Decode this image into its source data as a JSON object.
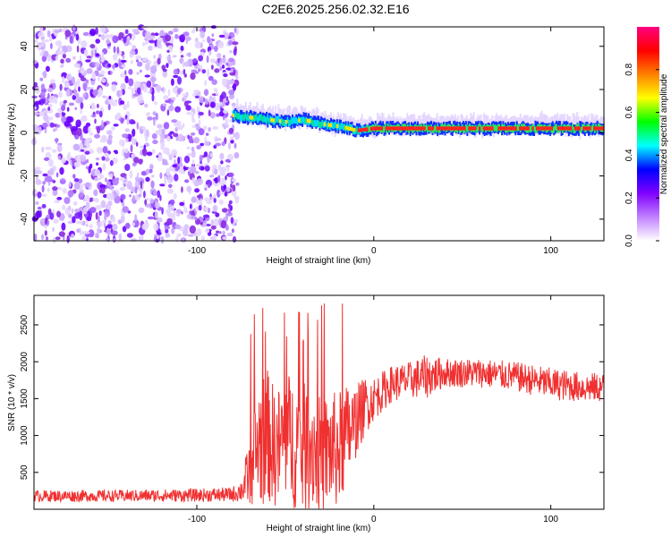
{
  "title": "C2E6.2025.256.02.32.E16",
  "spectrogram": {
    "xlabel": "Height of straight line (km)",
    "ylabel": "Frequency (Hz)",
    "xlim": [
      -192,
      130
    ],
    "ylim": [
      -50,
      49
    ],
    "xticks": [
      -100,
      0,
      100
    ],
    "yticks": [
      -40,
      -20,
      0,
      20,
      40
    ],
    "colorbar": {
      "label": "Normalized spectral amplitude",
      "ticks": [
        "0.0",
        "0.2",
        "0.4",
        "0.6",
        "0.8"
      ],
      "tick_values": [
        0.0,
        0.2,
        0.4,
        0.6,
        0.8
      ],
      "range": [
        0,
        1
      ],
      "colors": [
        "#ffffff",
        "#c080ff",
        "#8000ff",
        "#0000ff",
        "#00ffff",
        "#00ff00",
        "#ffff00",
        "#ff8000",
        "#ff0000",
        "#ff0080"
      ]
    },
    "noise_region_end_km": -77,
    "signal_track": {
      "x": [
        -80,
        -70,
        -60,
        -50,
        -40,
        -30,
        -20,
        -10,
        0,
        10,
        20,
        30,
        40,
        60,
        80,
        100,
        130
      ],
      "freq": [
        8,
        7,
        6,
        5,
        6,
        4,
        3,
        1,
        2,
        2,
        2,
        2,
        2,
        2,
        2,
        2,
        2
      ]
    }
  },
  "chart_data": [
    {
      "type": "heatmap",
      "title": "C2E6.2025.256.02.32.E16",
      "xlabel": "Height of straight line (km)",
      "ylabel": "Frequency (Hz)",
      "xlim": [
        -192,
        130
      ],
      "ylim": [
        -50,
        49
      ],
      "xticks": [
        -100,
        0,
        100
      ],
      "yticks": [
        -40,
        -20,
        0,
        20,
        40
      ],
      "colorbar_label": "Normalized spectral amplitude",
      "colorbar_ticks": [
        "0.0",
        "0.2",
        "0.4",
        "0.6",
        "0.8"
      ]
    },
    {
      "type": "line",
      "xlabel": "Height of straight line (km)",
      "ylabel": "SNR (10 * v/v)",
      "xlim": [
        -192,
        130
      ],
      "ylim": [
        0,
        2900
      ],
      "xticks": [
        -100,
        0,
        100
      ],
      "yticks": [
        500,
        1000,
        1500,
        2000,
        2500
      ],
      "color": "#f03030",
      "envelope": {
        "x": [
          -192,
          -150,
          -100,
          -80,
          -75,
          -70,
          -65,
          -60,
          -55,
          -50,
          -45,
          -40,
          -35,
          -30,
          -25,
          -20,
          -15,
          -10,
          -5,
          0,
          10,
          20,
          30,
          40,
          60,
          80,
          100,
          120,
          130
        ],
        "mean": [
          180,
          180,
          190,
          200,
          250,
          500,
          900,
          1000,
          800,
          1000,
          900,
          800,
          900,
          700,
          800,
          800,
          1000,
          1200,
          1400,
          1500,
          1700,
          1750,
          1800,
          1850,
          1850,
          1800,
          1700,
          1650,
          1650
        ],
        "spread": [
          80,
          80,
          90,
          100,
          150,
          500,
          900,
          900,
          800,
          900,
          900,
          900,
          900,
          800,
          800,
          800,
          700,
          500,
          400,
          300,
          250,
          250,
          300,
          200,
          200,
          200,
          220,
          200,
          200
        ]
      }
    }
  ],
  "snr_plot": {
    "xlabel": "Height of straight line (km)",
    "ylabel": "SNR (10 * v/v)",
    "xlim": [
      -192,
      130
    ],
    "ylim": [
      0,
      2900
    ],
    "xticks": [
      -100,
      0,
      100
    ],
    "yticks": [
      500,
      1000,
      1500,
      2000,
      2500
    ],
    "color": "#f03030"
  }
}
